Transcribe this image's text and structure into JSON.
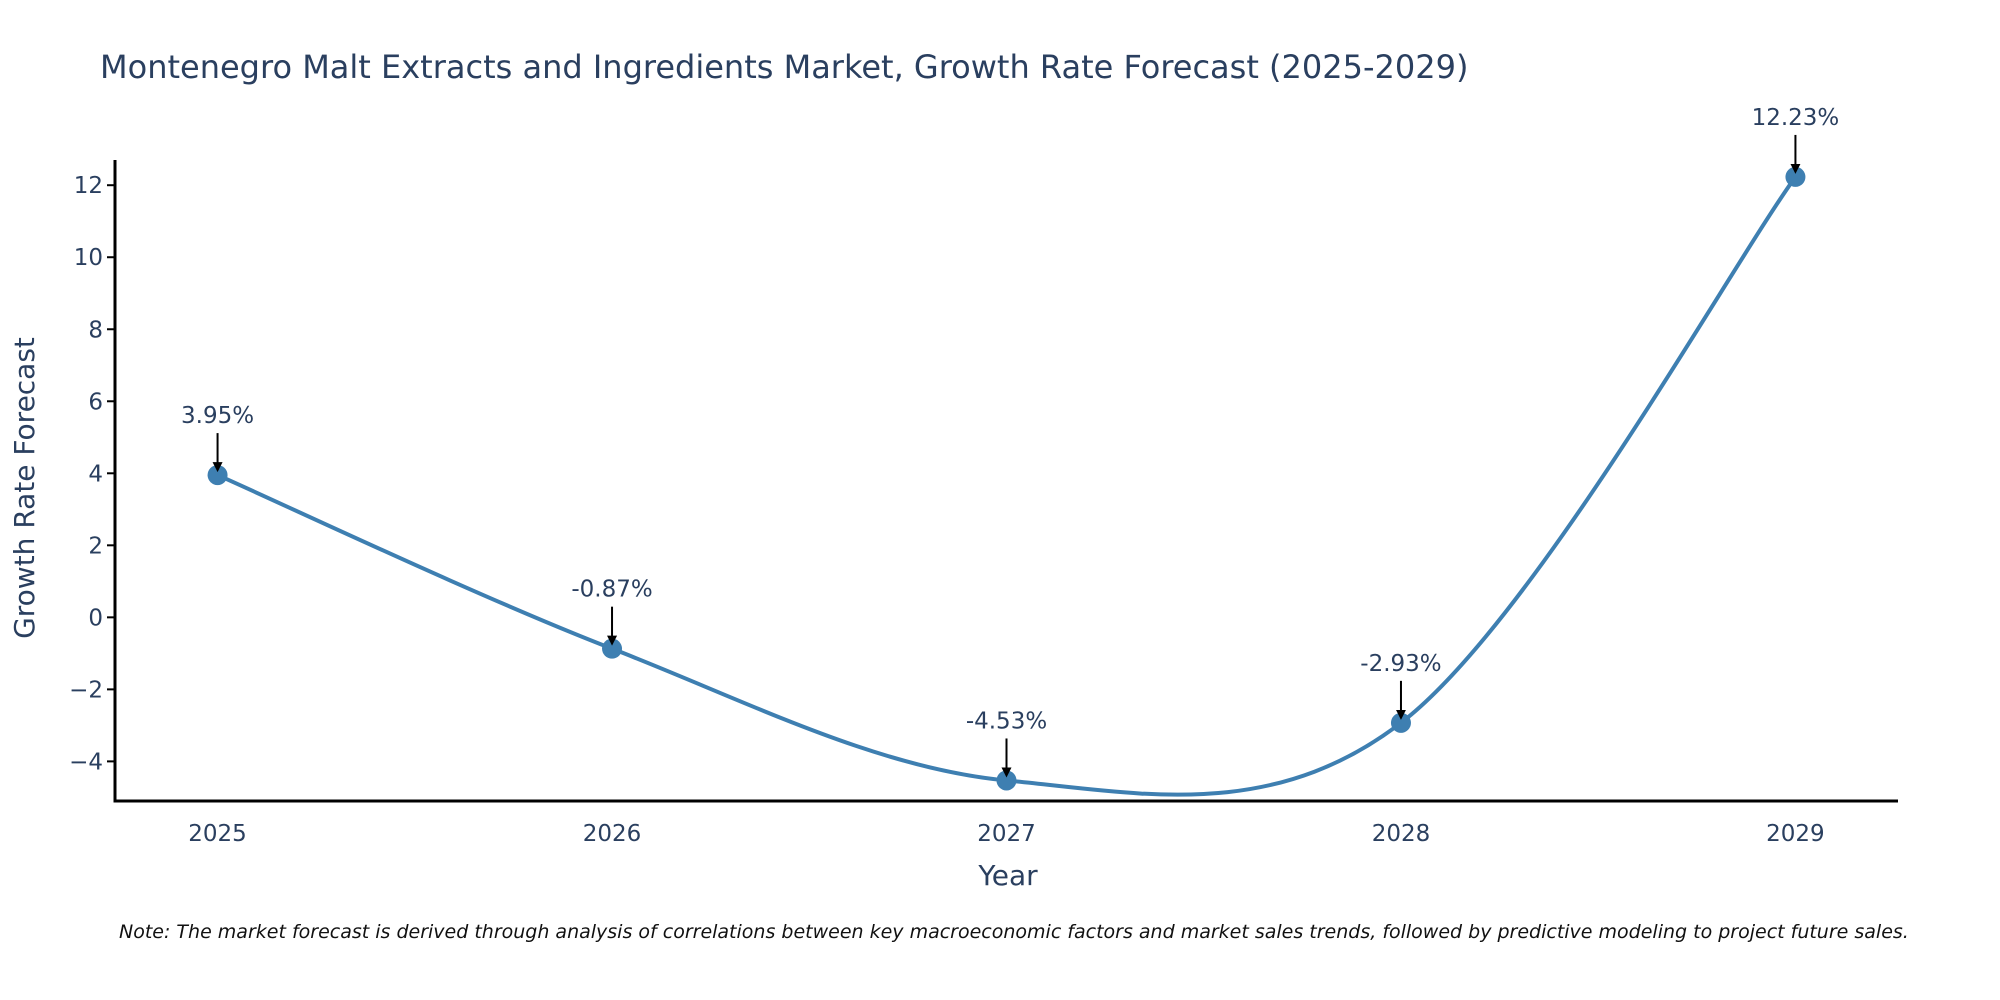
{
  "chart_data": {
    "type": "line",
    "title": "Montenegro Malt Extracts and Ingredients Market, Growth Rate Forecast (2025-2029)",
    "xlabel": "Year",
    "ylabel": "Growth Rate Forecast",
    "categories": [
      "2025",
      "2026",
      "2027",
      "2028",
      "2029"
    ],
    "series": [
      {
        "name": "Growth Rate Forecast",
        "values": [
          3.95,
          -0.87,
          -4.53,
          -2.93,
          12.23
        ],
        "labels": [
          "3.95%",
          "-0.87%",
          "-4.53%",
          "-2.93%",
          "12.23%"
        ],
        "color": "#3e7fb1"
      }
    ],
    "y_ticks": [
      -4,
      -2,
      0,
      2,
      4,
      6,
      8,
      10,
      12
    ],
    "y_tick_labels": [
      "−4",
      "−2",
      "0",
      "2",
      "4",
      "6",
      "8",
      "10",
      "12"
    ],
    "ylim": [
      -5.1,
      12.7
    ],
    "xlim": [
      -0.26,
      4.26
    ],
    "grid": false,
    "line_shape": "spline",
    "annotation_arrow_color": "#000000",
    "note": "Note: The market forecast is derived through analysis of correlations between key macroeconomic factors and market sales trends, followed by predictive modeling to project future sales."
  }
}
